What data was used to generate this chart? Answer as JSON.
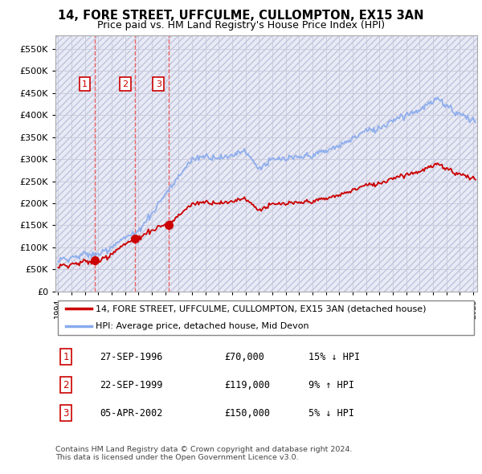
{
  "title": "14, FORE STREET, UFFCULME, CULLOMPTON, EX15 3AN",
  "subtitle": "Price paid vs. HM Land Registry's House Price Index (HPI)",
  "legend_line1": "14, FORE STREET, UFFCULME, CULLOMPTON, EX15 3AN (detached house)",
  "legend_line2": "HPI: Average price, detached house, Mid Devon",
  "transactions": [
    {
      "num": 1,
      "date": "27-SEP-1996",
      "price": "£70,000",
      "hpi": "15% ↓ HPI"
    },
    {
      "num": 2,
      "date": "22-SEP-1999",
      "price": "£119,000",
      "hpi": "9% ↑ HPI"
    },
    {
      "num": 3,
      "date": "05-APR-2002",
      "price": "£150,000",
      "hpi": "5% ↓ HPI"
    }
  ],
  "sale_dates": [
    1996.75,
    1999.72,
    2002.27
  ],
  "sale_prices": [
    70000,
    119000,
    150000
  ],
  "vline_dates": [
    1996.75,
    1999.72,
    2002.27
  ],
  "ylabel_ticks": [
    0,
    50000,
    100000,
    150000,
    200000,
    250000,
    300000,
    350000,
    400000,
    450000,
    500000,
    550000
  ],
  "ylim": [
    0,
    580000
  ],
  "xlim": [
    1993.8,
    2025.3
  ],
  "hpi_color": "#88aaee",
  "price_color": "#cc0000",
  "vline_color": "#ee5555",
  "grid_color": "#c8c8dc",
  "footer": "Contains HM Land Registry data © Crown copyright and database right 2024.\nThis data is licensed under the Open Government Licence v3.0."
}
